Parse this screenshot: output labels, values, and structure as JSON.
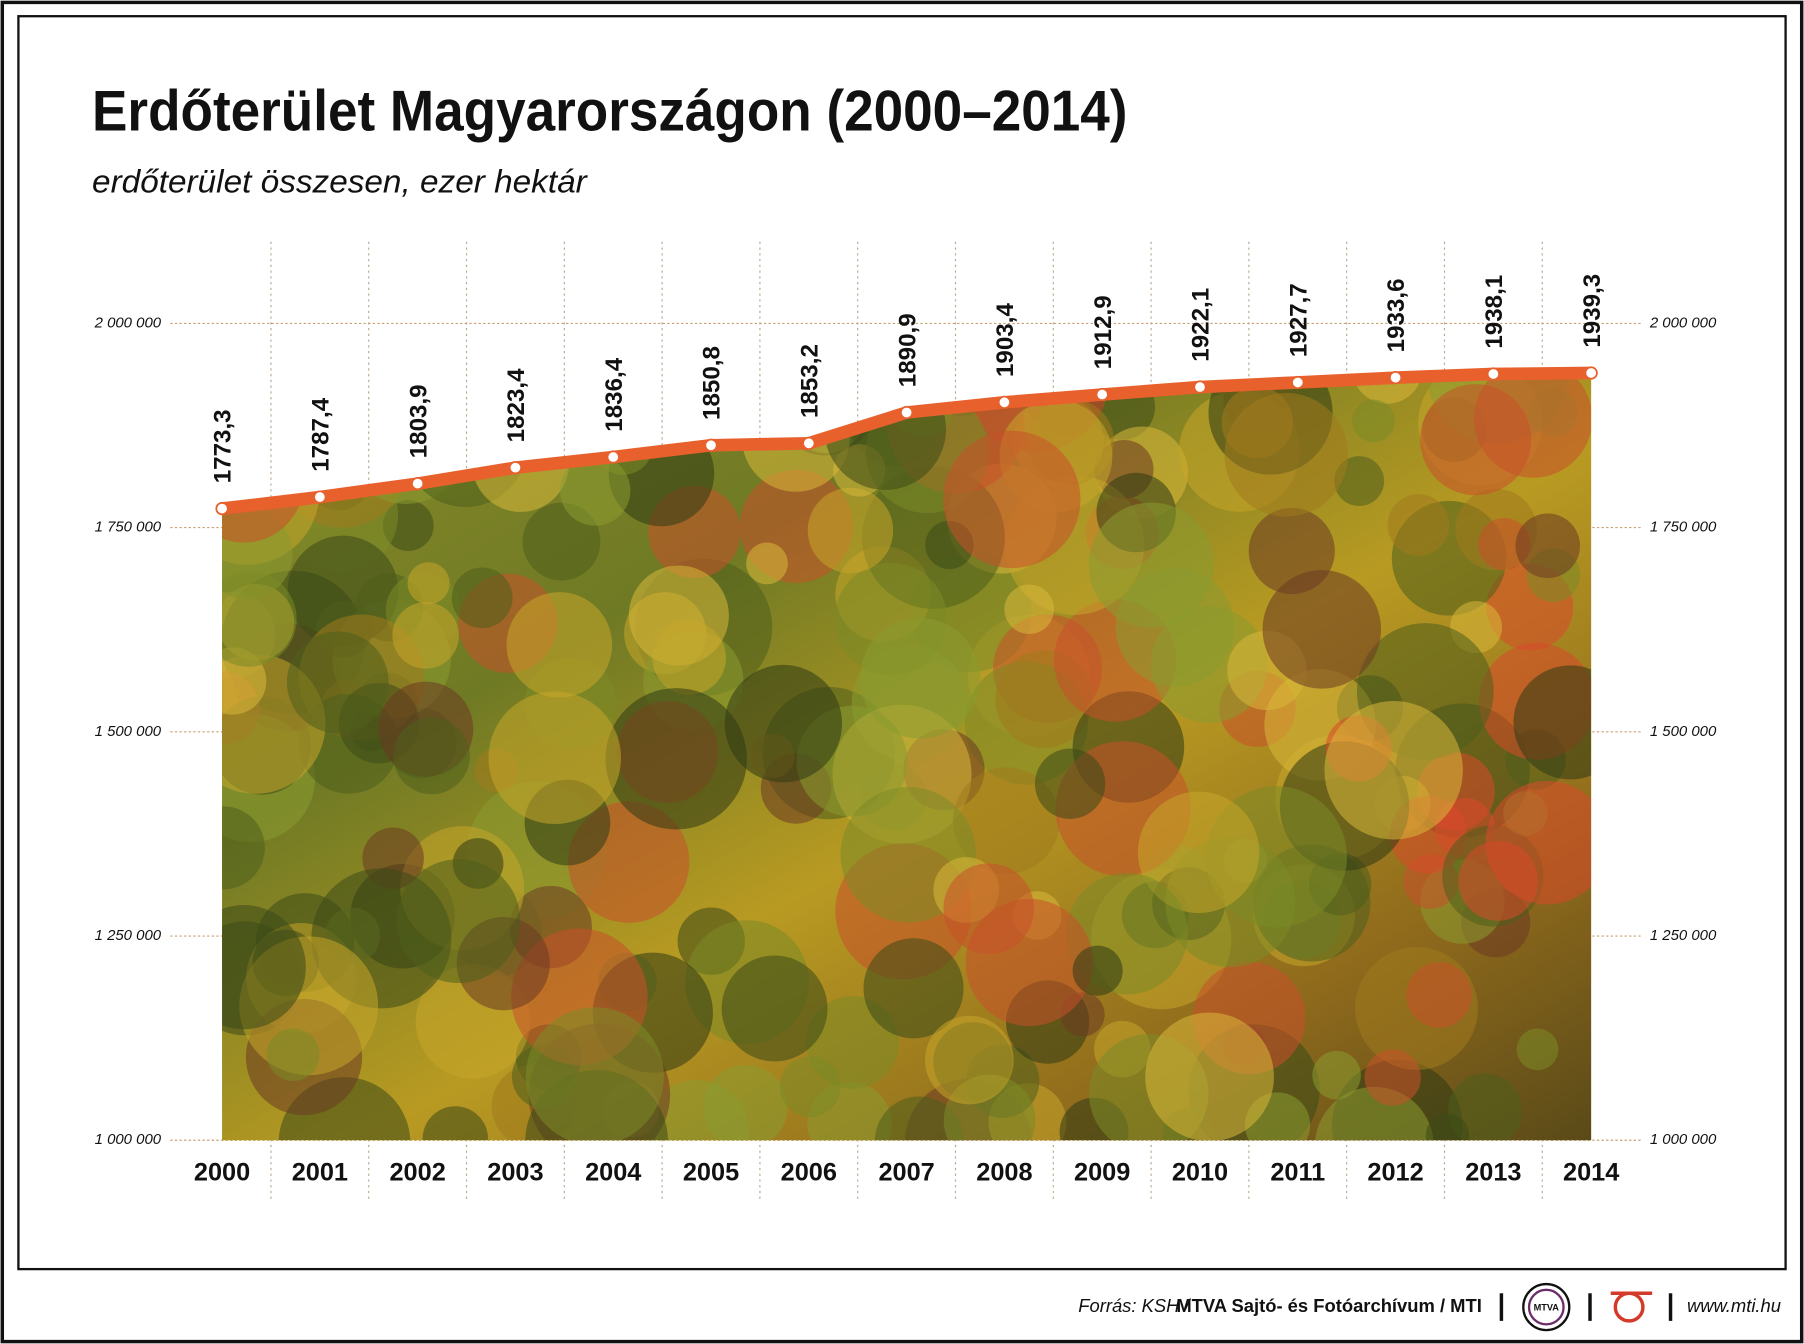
{
  "chart_data": {
    "type": "line",
    "title": "Erdőterület Magyarországon (2000–2014)",
    "subtitle": "erdőterület összesen, ezer hektár",
    "categories": [
      "2000",
      "2001",
      "2002",
      "2003",
      "2004",
      "2005",
      "2006",
      "2007",
      "2008",
      "2009",
      "2010",
      "2011",
      "2012",
      "2013",
      "2014"
    ],
    "series": [
      {
        "name": "erdőterület",
        "color": "#e8602c",
        "values": [
          1773300,
          1787400,
          1803900,
          1823400,
          1836400,
          1850800,
          1853200,
          1890900,
          1903400,
          1912900,
          1922100,
          1927700,
          1933600,
          1938100,
          1939300
        ],
        "value_labels": [
          "1773,3",
          "1787,4",
          "1803,9",
          "1823,4",
          "1836,4",
          "1850,8",
          "1853,2",
          "1890,9",
          "1903,4",
          "1912,9",
          "1922,1",
          "1927,7",
          "1933,6",
          "1938,1",
          "1939,3"
        ]
      }
    ],
    "ylim": [
      1000000,
      2100000
    ],
    "yticks": [
      {
        "value": 1000000,
        "label": "1 000 000"
      },
      {
        "value": 1250000,
        "label": "1 250 000"
      },
      {
        "value": 1500000,
        "label": "1 500 000"
      },
      {
        "value": 1750000,
        "label": "1 750 000"
      },
      {
        "value": 2000000,
        "label": "2 000 000"
      }
    ],
    "grid": true
  },
  "footer": {
    "source_prefix": "Forrás: KSH /",
    "source_org": "MTVA Sajtó- és Fotóarchívum / MTI",
    "logo": "MTVA",
    "url": "www.mti.hu"
  }
}
